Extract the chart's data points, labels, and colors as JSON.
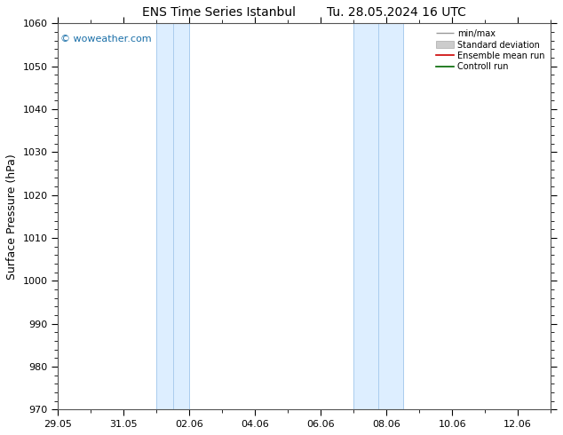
{
  "title_left": "ENS Time Series Istanbul",
  "title_right": "Tu. 28.05.2024 16 UTC",
  "ylabel": "Surface Pressure (hPa)",
  "ylim": [
    970,
    1060
  ],
  "yticks": [
    970,
    980,
    990,
    1000,
    1010,
    1020,
    1030,
    1040,
    1050,
    1060
  ],
  "xlim": [
    0,
    15
  ],
  "xtick_labels": [
    "29.05",
    "31.05",
    "02.06",
    "04.06",
    "06.06",
    "08.06",
    "10.06",
    "12.06"
  ],
  "xtick_positions": [
    0,
    2,
    4,
    6,
    8,
    10,
    12,
    14
  ],
  "blue_bands": [
    {
      "start": 3.0,
      "end": 4.0,
      "mid": 3.5
    },
    {
      "start": 9.0,
      "end": 10.5,
      "mid": 9.75
    }
  ],
  "band_color": "#ddeeff",
  "band_line_color": "#aaccee",
  "watermark": "© woweather.com",
  "watermark_color": "#1a6fa8",
  "background_color": "#ffffff",
  "spine_color": "#555555",
  "title_fontsize": 10,
  "tick_fontsize": 8,
  "ylabel_fontsize": 9,
  "watermark_fontsize": 8,
  "legend_fontsize": 7,
  "legend_items": [
    {
      "label": "min/max",
      "color": "#999999",
      "type": "errorbar"
    },
    {
      "label": "Standard deviation",
      "color": "#cccccc",
      "type": "fill"
    },
    {
      "label": "Ensemble mean run",
      "color": "#cc0000",
      "type": "line"
    },
    {
      "label": "Controll run",
      "color": "#006600",
      "type": "line"
    }
  ]
}
